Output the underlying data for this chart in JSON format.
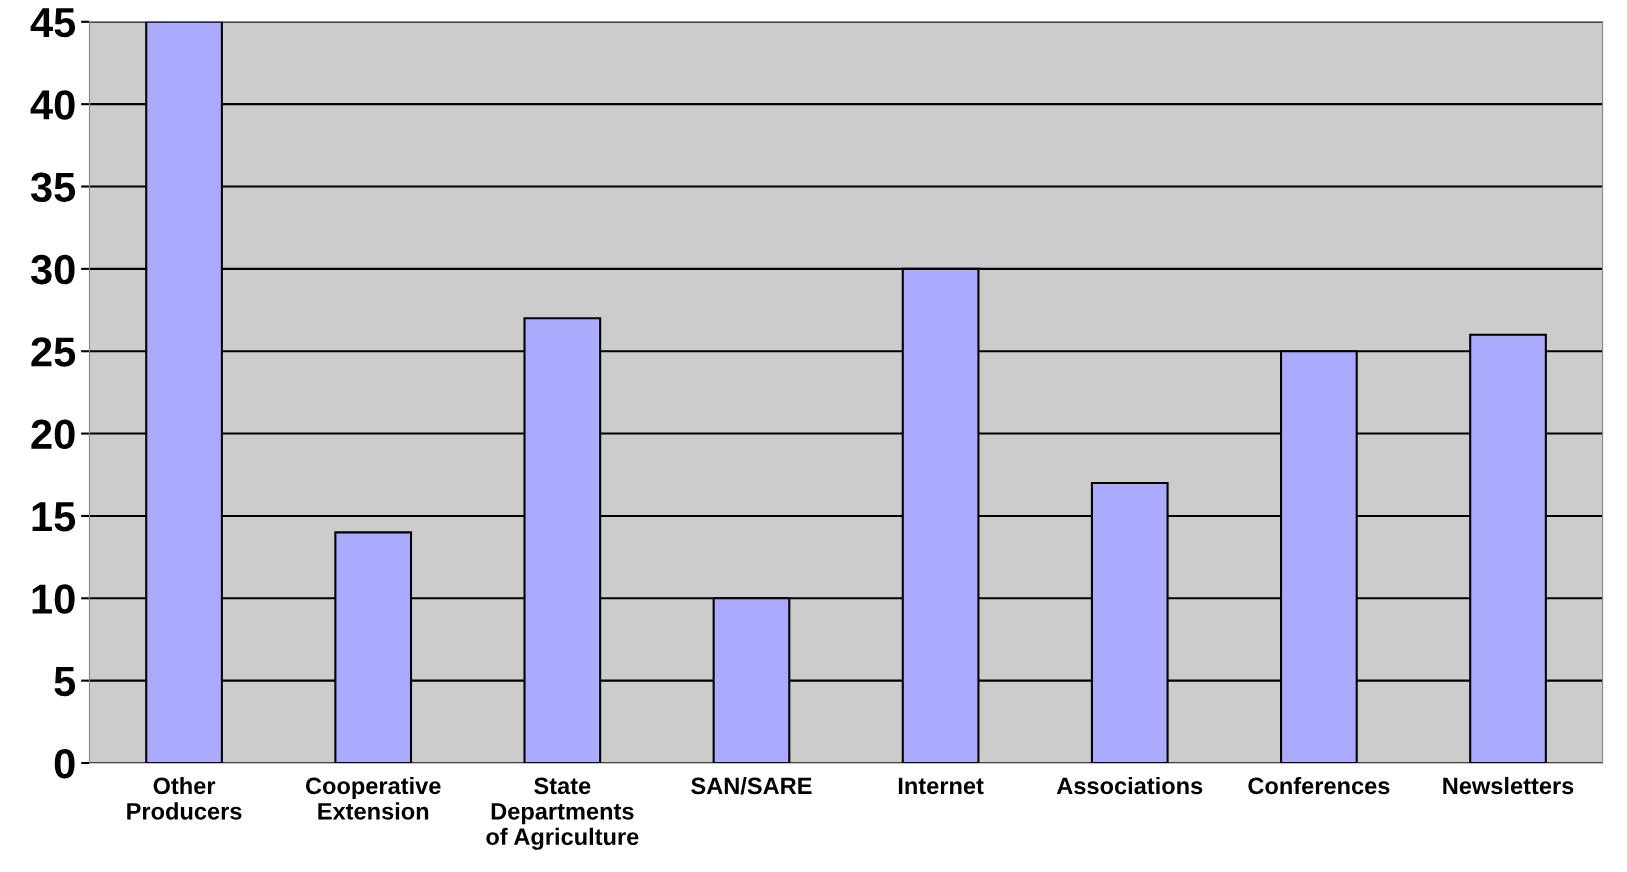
{
  "chart_data": {
    "type": "bar",
    "categories": [
      "Other\nProducers",
      "Cooperative\nExtension",
      "State\nDepartments\nof Agriculture",
      "SAN/SARE",
      "Internet",
      "Associations",
      "Conferences",
      "Newsletters"
    ],
    "values": [
      45,
      14,
      27,
      10,
      30,
      17,
      25,
      26
    ],
    "color": "#aaaaff",
    "ylim": [
      0,
      45
    ],
    "yticks": [
      0,
      5,
      10,
      15,
      20,
      25,
      30,
      35,
      40,
      45
    ],
    "grid": "y"
  }
}
